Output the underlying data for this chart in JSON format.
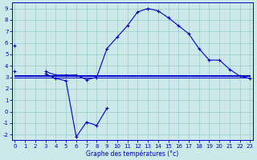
{
  "xlabel": "Graphe des températures (°c)",
  "x": [
    0,
    1,
    2,
    3,
    4,
    5,
    6,
    7,
    8,
    9,
    10,
    11,
    12,
    13,
    14,
    15,
    16,
    17,
    18,
    19,
    20,
    21,
    22,
    23
  ],
  "temp_curve": [
    5.8,
    null,
    null,
    3.5,
    3.2,
    3.2,
    3.2,
    2.8,
    3.0,
    5.5,
    6.5,
    7.5,
    8.7,
    9.0,
    8.8,
    8.2,
    7.5,
    6.8,
    5.5,
    4.5,
    4.5,
    3.7,
    3.1,
    2.9
  ],
  "cold_curve": [
    3.5,
    null,
    null,
    3.3,
    2.9,
    2.7,
    -2.2,
    -0.9,
    -1.2,
    0.3,
    null,
    null,
    null,
    null,
    null,
    null,
    null,
    null,
    null,
    null,
    null,
    null,
    null,
    null
  ],
  "flat1": [
    3.0,
    3.0,
    3.0,
    3.0,
    3.0,
    3.0,
    3.0,
    3.0,
    3.0,
    3.0,
    3.0,
    3.0,
    3.0,
    3.0,
    3.0,
    3.0,
    3.0,
    3.0,
    3.0,
    3.0,
    3.0,
    3.0,
    3.0,
    3.0
  ],
  "flat2": [
    3.2,
    3.2,
    3.2,
    3.2,
    3.2,
    3.2,
    3.2,
    3.2,
    3.2,
    3.2,
    3.2,
    3.2,
    3.2,
    3.2,
    3.2,
    3.2,
    3.2,
    3.2,
    3.2,
    3.2,
    3.2,
    3.2,
    3.2,
    3.2
  ],
  "flat3": [
    3.1,
    3.1,
    3.1,
    3.1,
    3.1,
    3.1,
    3.1,
    3.1,
    3.1,
    3.1,
    3.1,
    3.1,
    3.1,
    3.1,
    3.1,
    3.1,
    3.1,
    3.1,
    3.1,
    3.1,
    3.1,
    3.1,
    3.1,
    3.1
  ],
  "background_color": "#cce8e8",
  "grid_color": "#99cccc",
  "line_color": "#0000cc",
  "ylim": [
    -2.5,
    9.5
  ],
  "xlim": [
    -0.3,
    23.3
  ],
  "yticks": [
    -2,
    -1,
    0,
    1,
    2,
    3,
    4,
    5,
    6,
    7,
    8,
    9
  ],
  "xticks": [
    0,
    1,
    2,
    3,
    4,
    5,
    6,
    7,
    8,
    9,
    10,
    11,
    12,
    13,
    14,
    15,
    16,
    17,
    18,
    19,
    20,
    21,
    22,
    23
  ]
}
